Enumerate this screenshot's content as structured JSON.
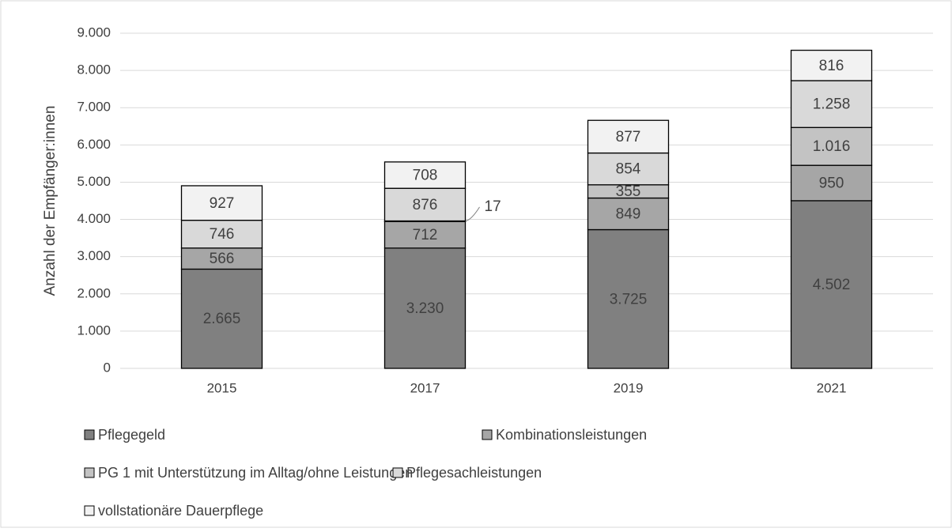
{
  "chart_data": {
    "type": "stacked_bar",
    "y_label": "Anzahl der Empfänger:innen",
    "categories": [
      "2015",
      "2017",
      "2019",
      "2021"
    ],
    "series": [
      {
        "name": "Pflegegeld",
        "color": "#808080",
        "values": [
          2665,
          3230,
          3725,
          4502
        ],
        "value_labels": [
          "2.665",
          "3.230",
          "3.725",
          "4.502"
        ]
      },
      {
        "name": "Kombinationsleistungen",
        "color": "#a6a6a6",
        "values": [
          566,
          712,
          849,
          950
        ]
      },
      {
        "name": "PG 1 mit Unterstützung im Alltag/ohne Leistungen",
        "color": "#c3c3c3",
        "values": [
          null,
          17,
          355,
          1016
        ],
        "value_labels": [
          null,
          "17",
          "355",
          "1.016"
        ]
      },
      {
        "name": "Pflegesachleistungen",
        "color": "#d9d9d9",
        "values": [
          746,
          876,
          854,
          1258
        ],
        "value_labels": [
          "746",
          "876",
          "854",
          "1.258"
        ]
      },
      {
        "name": "vollstationäre Dauerpflege",
        "color": "#f2f2f2",
        "values": [
          927,
          708,
          877,
          816
        ]
      }
    ],
    "ylim": [
      0,
      9000
    ],
    "yticks": [
      0,
      {
        "value": 1000,
        "label": "1.000"
      },
      {
        "value": 2000,
        "label": "2.000"
      },
      {
        "value": 3000,
        "label": "3.000"
      },
      {
        "value": 4000,
        "label": "4.000"
      },
      {
        "value": 5000,
        "label": "5.000"
      },
      {
        "value": 6000,
        "label": "6.000"
      },
      {
        "value": 7000,
        "label": "7.000"
      },
      {
        "value": 8000,
        "label": "8.000"
      },
      {
        "value": 9000,
        "label": "9.000"
      }
    ],
    "grid": true,
    "legend": "bottom"
  }
}
